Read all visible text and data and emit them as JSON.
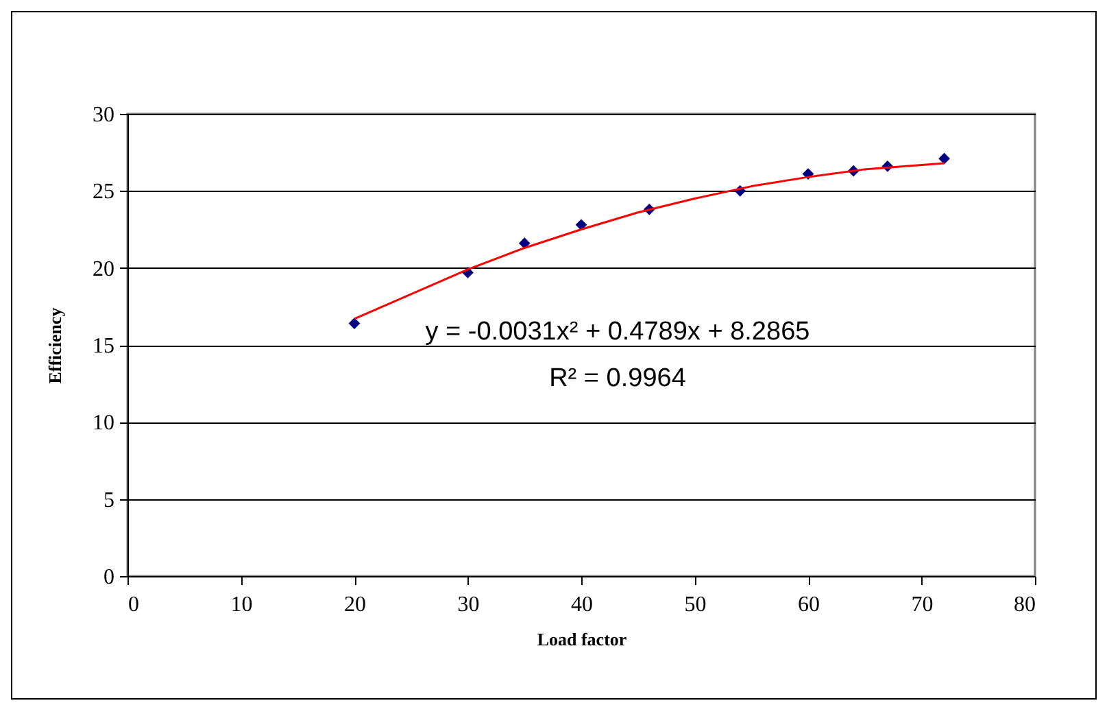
{
  "chart_data": {
    "type": "scatter",
    "xlabel": "Load factor",
    "ylabel": "Efficiency",
    "xlim": [
      0,
      80
    ],
    "xticks": [
      0,
      10,
      20,
      30,
      40,
      50,
      60,
      70,
      80
    ],
    "ylim": [
      0,
      30
    ],
    "yticks": [
      0,
      5,
      10,
      15,
      20,
      25,
      30
    ],
    "grid": "y",
    "x": [
      20,
      30,
      35,
      40,
      46,
      54,
      60,
      64,
      67,
      72
    ],
    "series": [
      {
        "color": "#000080",
        "marker": "diamond",
        "values": [
          16.4,
          19.7,
          21.6,
          22.8,
          23.8,
          25.0,
          26.1,
          26.3,
          26.6,
          27.1
        ]
      },
      {
        "type": "line",
        "color": "#ff0000",
        "marker": "none",
        "line_style": "solid",
        "x": [
          20,
          25,
          30,
          35,
          40,
          45,
          50,
          55,
          60,
          65,
          72
        ],
        "values": [
          16.7,
          18.3,
          19.9,
          21.3,
          22.5,
          23.6,
          24.5,
          25.3,
          25.9,
          26.4,
          26.8
        ]
      }
    ],
    "annotations": [
      "y = -0.0031x² + 0.4789x + 8.2865",
      "R² = 0.9964"
    ]
  }
}
